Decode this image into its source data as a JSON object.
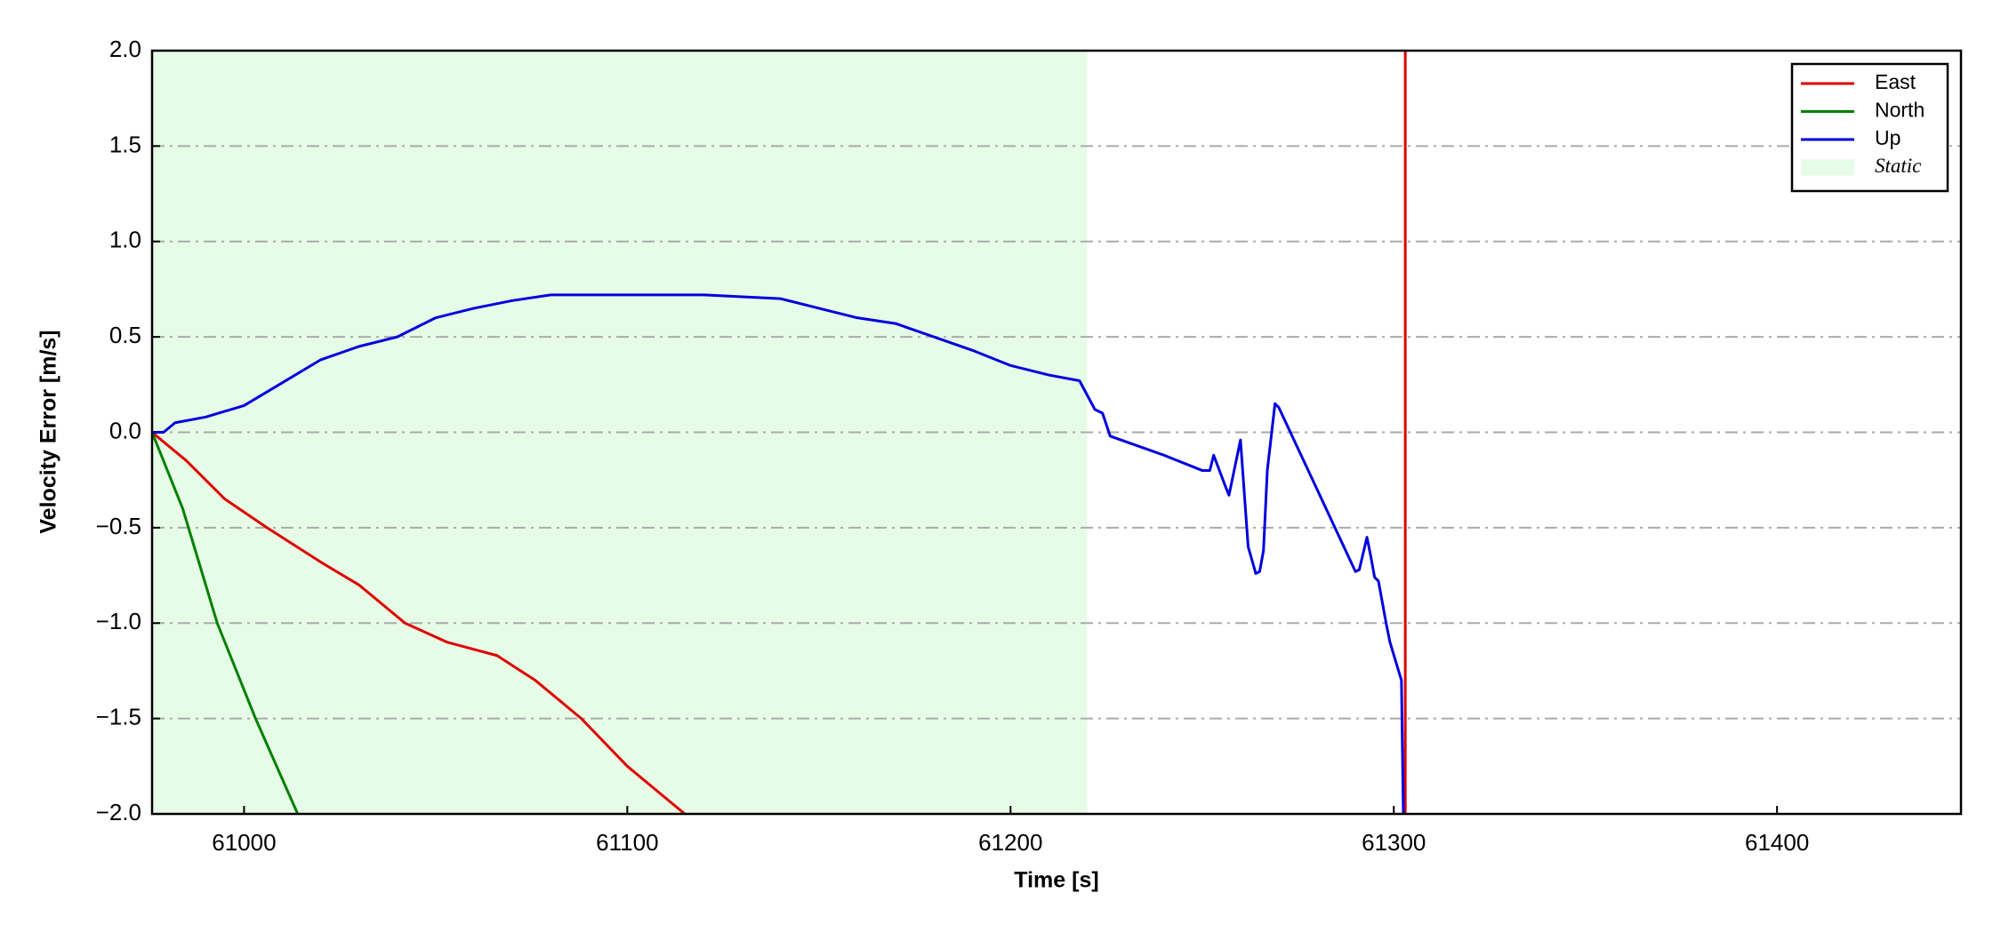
{
  "chart_data": {
    "type": "line",
    "xlabel": "Time [s]",
    "ylabel": "Velocity Error [m/s]",
    "xlim": [
      60976,
      61448
    ],
    "ylim": [
      -2.0,
      2.0
    ],
    "xticks": [
      61000,
      61100,
      61200,
      61300,
      61400
    ],
    "yticks": [
      {
        "value": -2.0,
        "label": "−2.0"
      },
      {
        "value": -1.5,
        "label": "−1.5"
      },
      {
        "value": -1.0,
        "label": "−1.0"
      },
      {
        "value": -0.5,
        "label": "−0.5"
      },
      {
        "value": 0.0,
        "label": "0.0"
      },
      {
        "value": 0.5,
        "label": "0.5"
      },
      {
        "value": 1.0,
        "label": "1.0"
      },
      {
        "value": 1.5,
        "label": "1.5"
      },
      {
        "value": 2.0,
        "label": "2.0"
      }
    ],
    "grid": true,
    "legend": "upper right",
    "static_region": {
      "name": "Static",
      "x": [
        60976,
        61220
      ],
      "color": "#e6fce6"
    },
    "series": [
      {
        "name": "East",
        "color": "#dd0000",
        "x": [
          60976,
          60985,
          60995,
          61006,
          61020,
          61030,
          61042,
          61053,
          61066,
          61076,
          61088,
          61100,
          61115,
          null,
          61303,
          61303
        ],
        "values": [
          0.0,
          -0.15,
          -0.35,
          -0.5,
          -0.68,
          -0.8,
          -1.0,
          -1.1,
          -1.17,
          -1.3,
          -1.5,
          -1.75,
          -2.0,
          null,
          -2.0,
          2.0
        ]
      },
      {
        "name": "North",
        "color": "#008000",
        "x": [
          60976,
          60984,
          60993,
          61003,
          61014
        ],
        "values": [
          0.0,
          -0.4,
          -1.0,
          -1.5,
          -2.0
        ]
      },
      {
        "name": "Up",
        "color": "#0000dd",
        "x": [
          60976,
          60979,
          60982,
          60990,
          61000,
          61010,
          61020,
          61030,
          61040,
          61050,
          61060,
          61070,
          61080,
          61090,
          61100,
          61110,
          61120,
          61130,
          61140,
          61150,
          61160,
          61170,
          61180,
          61190,
          61200,
          61210,
          61218,
          61222,
          61224,
          61226,
          61240,
          61250,
          61252,
          61253,
          61256,
          61257,
          61260,
          61262,
          61264,
          61265,
          61266,
          61267,
          61269,
          61270,
          61280,
          61290,
          61291,
          61293,
          61294,
          61295,
          61296,
          61298,
          61299,
          61302,
          61302.5
        ],
        "values": [
          0.0,
          0.0,
          0.05,
          0.08,
          0.14,
          0.26,
          0.38,
          0.45,
          0.5,
          0.6,
          0.65,
          0.69,
          0.72,
          0.72,
          0.72,
          0.72,
          0.72,
          0.71,
          0.7,
          0.65,
          0.6,
          0.57,
          0.5,
          0.43,
          0.35,
          0.3,
          0.27,
          0.12,
          0.1,
          -0.02,
          -0.12,
          -0.2,
          -0.2,
          -0.12,
          -0.28,
          -0.33,
          -0.04,
          -0.6,
          -0.74,
          -0.73,
          -0.62,
          -0.2,
          0.15,
          0.13,
          -0.3,
          -0.73,
          -0.72,
          -0.55,
          -0.65,
          -0.76,
          -0.78,
          -1.0,
          -1.1,
          -1.3,
          -2.0
        ]
      }
    ]
  }
}
